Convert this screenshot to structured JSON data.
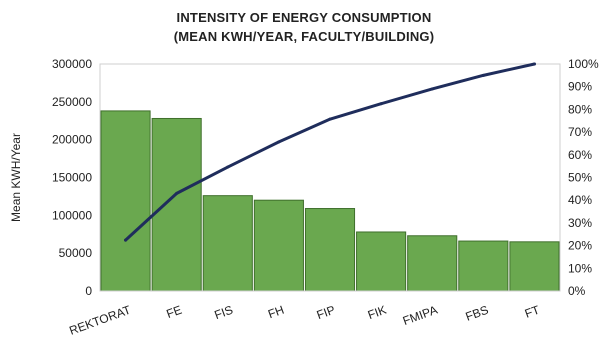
{
  "chart_data": {
    "type": "bar",
    "title": "INTENSITY OF ENERGY CONSUMPTION",
    "subtitle": "(MEAN KWH/YEAR, FACULTY/BUILDING)",
    "ylabel": "Mean KWH/Year",
    "categories": [
      "REKTORAT",
      "FE",
      "FIS",
      "FH",
      "FIP",
      "FIK",
      "FMIPA",
      "FBS",
      "FT"
    ],
    "series": [
      {
        "type": "bar",
        "values": [
          238000,
          228000,
          126000,
          120000,
          109000,
          78000,
          73000,
          66000,
          65000
        ],
        "color": "#6aa84f"
      },
      {
        "type": "line",
        "axis": "right",
        "values": [
          22.4,
          43.0,
          54.6,
          65.7,
          75.7,
          82.5,
          89.0,
          95.0,
          100
        ],
        "color": "#1f2d5c"
      }
    ],
    "ylim": [
      0,
      300000
    ],
    "yticks": [
      "0",
      "50000",
      "100000",
      "150000",
      "200000",
      "250000",
      "300000"
    ],
    "y2lim": [
      0,
      100
    ],
    "y2ticks": [
      "0%",
      "10%",
      "20%",
      "30%",
      "40%",
      "50%",
      "60%",
      "70%",
      "80%",
      "90%",
      "100%"
    ],
    "grid": false
  }
}
